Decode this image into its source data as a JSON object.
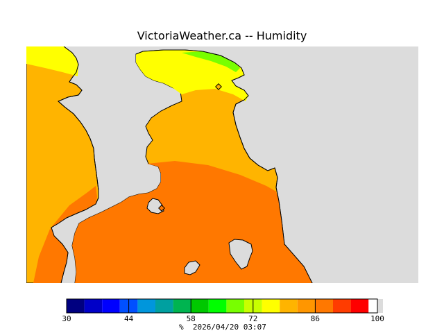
{
  "title": "VictoriaWeather.ca -- Humidity",
  "legend": {
    "unit": "%",
    "timestamp": "2026/04/20 03:07",
    "min": 30,
    "max": 100,
    "step": 4,
    "tick_labels": [
      "30",
      "44",
      "58",
      "72",
      "86",
      "100"
    ],
    "colors": [
      "#000080",
      "#0000c8",
      "#0000ff",
      "#0050ff",
      "#0096dc",
      "#00a0a0",
      "#00b450",
      "#00c800",
      "#00ff00",
      "#78ff00",
      "#c8ff00",
      "#ffff00",
      "#ffb400",
      "#ff9600",
      "#ff7800",
      "#ff3c00",
      "#ff0000"
    ]
  },
  "map": {
    "land_color": "#dcdcdc",
    "zone_colors": {
      "humid_yellow": "#ffff00",
      "humid_amber": "#ffb400",
      "humid_orange": "#ff7800",
      "humid_green": "#78ff00"
    }
  }
}
